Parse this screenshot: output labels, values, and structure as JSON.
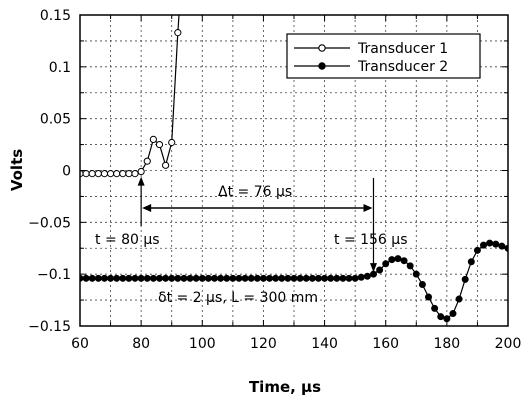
{
  "chart_data": {
    "type": "line",
    "title": "",
    "xlabel": "Time, µs",
    "ylabel": "Volts",
    "xlim": [
      60,
      200
    ],
    "ylim": [
      -0.15,
      0.15
    ],
    "grid": true,
    "legend_position": "top-right",
    "x_ticks": [
      "60",
      "80",
      "100",
      "120",
      "140",
      "160",
      "180",
      "200"
    ],
    "y_ticks": [
      "0.15",
      "0.1",
      "0.05",
      "0",
      "−0.05",
      "−0.1",
      "−0.15"
    ],
    "series": [
      {
        "name": "Transducer 1",
        "marker": "open-circle",
        "x": [
          60,
          62,
          64,
          66,
          68,
          70,
          72,
          74,
          76,
          78,
          80,
          82,
          84,
          86,
          88,
          90,
          92,
          93.5
        ],
        "y": [
          -0.003,
          -0.003,
          -0.003,
          -0.003,
          -0.003,
          -0.003,
          -0.003,
          -0.003,
          -0.003,
          -0.003,
          -0.001,
          0.009,
          0.03,
          0.025,
          0.005,
          0.027,
          0.133,
          0.2
        ]
      },
      {
        "name": "Transducer 2",
        "marker": "filled-circle",
        "x": [
          60,
          62,
          64,
          66,
          68,
          70,
          72,
          74,
          76,
          78,
          80,
          82,
          84,
          86,
          88,
          90,
          92,
          94,
          96,
          98,
          100,
          102,
          104,
          106,
          108,
          110,
          112,
          114,
          116,
          118,
          120,
          122,
          124,
          126,
          128,
          130,
          132,
          134,
          136,
          138,
          140,
          142,
          144,
          146,
          148,
          150,
          152,
          154,
          156,
          158,
          160,
          162,
          164,
          166,
          168,
          170,
          172,
          174,
          176,
          178,
          180,
          182,
          184,
          186,
          188,
          190,
          192,
          194,
          196,
          198,
          200
        ],
        "y": [
          -0.104,
          -0.104,
          -0.104,
          -0.104,
          -0.104,
          -0.104,
          -0.104,
          -0.104,
          -0.104,
          -0.104,
          -0.104,
          -0.104,
          -0.104,
          -0.104,
          -0.104,
          -0.104,
          -0.104,
          -0.104,
          -0.104,
          -0.104,
          -0.104,
          -0.104,
          -0.104,
          -0.104,
          -0.104,
          -0.104,
          -0.104,
          -0.104,
          -0.104,
          -0.104,
          -0.104,
          -0.104,
          -0.104,
          -0.104,
          -0.104,
          -0.104,
          -0.104,
          -0.104,
          -0.104,
          -0.104,
          -0.104,
          -0.104,
          -0.104,
          -0.104,
          -0.104,
          -0.104,
          -0.103,
          -0.102,
          -0.1,
          -0.096,
          -0.09,
          -0.086,
          -0.085,
          -0.087,
          -0.092,
          -0.1,
          -0.11,
          -0.122,
          -0.133,
          -0.141,
          -0.143,
          -0.138,
          -0.124,
          -0.105,
          -0.088,
          -0.077,
          -0.072,
          -0.07,
          -0.071,
          -0.073,
          -0.075
        ]
      }
    ],
    "annotations": {
      "t1_label": "t = 80 µs",
      "t1_x": 80,
      "t2_label": "t = 156 µs",
      "t2_x": 156,
      "dt_label": "Δt = 76 µs",
      "params_label": "δt = 2 µs, L = 300 mm"
    }
  }
}
